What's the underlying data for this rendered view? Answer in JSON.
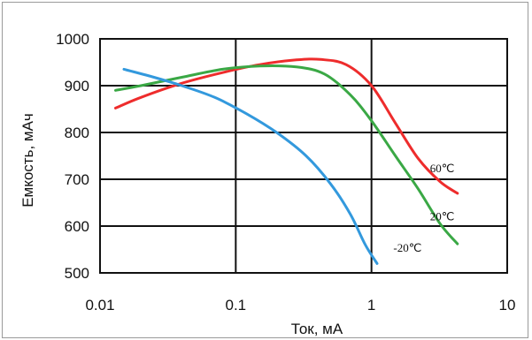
{
  "chart_data": {
    "type": "line",
    "xlabel": "Ток, мА",
    "ylabel": "Емкость, мАч",
    "x_scale": "log",
    "xlim": [
      0.01,
      10
    ],
    "ylim": [
      500,
      1000
    ],
    "x_ticks": [
      "0.01",
      "0.1",
      "1",
      "10"
    ],
    "x_tick_values": [
      0.01,
      0.1,
      1,
      10
    ],
    "y_ticks": [
      "1000",
      "900",
      "800",
      "700",
      "600",
      "500"
    ],
    "y_tick_values": [
      1000,
      900,
      800,
      700,
      600,
      500
    ],
    "grid": true,
    "series": [
      {
        "name": "60℃",
        "color": "#ee2c2c",
        "x": [
          0.013,
          0.02,
          0.04,
          0.08,
          0.15,
          0.28,
          0.42,
          0.65,
          1.0,
          1.5,
          2.2,
          3.2,
          4.3
        ],
        "y": [
          852,
          875,
          905,
          928,
          945,
          955,
          956,
          945,
          900,
          820,
          745,
          695,
          670
        ]
      },
      {
        "name": "20℃",
        "color": "#3aa845",
        "x": [
          0.013,
          0.02,
          0.04,
          0.08,
          0.15,
          0.28,
          0.45,
          0.7,
          1.0,
          1.5,
          2.2,
          3.2,
          4.3
        ],
        "y": [
          890,
          900,
          918,
          935,
          942,
          940,
          925,
          880,
          825,
          750,
          680,
          605,
          562
        ]
      },
      {
        "name": "-20℃",
        "color": "#3399dd",
        "x": [
          0.015,
          0.025,
          0.04,
          0.07,
          0.12,
          0.2,
          0.33,
          0.5,
          0.7,
          0.9,
          1.1
        ],
        "y": [
          935,
          918,
          900,
          875,
          840,
          800,
          750,
          690,
          625,
          560,
          520
        ]
      }
    ],
    "annotations": [
      {
        "text": "60℃",
        "x": 2.7,
        "y": 715
      },
      {
        "text": "20℃",
        "x": 2.7,
        "y": 612
      },
      {
        "text": "-20℃",
        "x": 1.45,
        "y": 545
      }
    ]
  }
}
